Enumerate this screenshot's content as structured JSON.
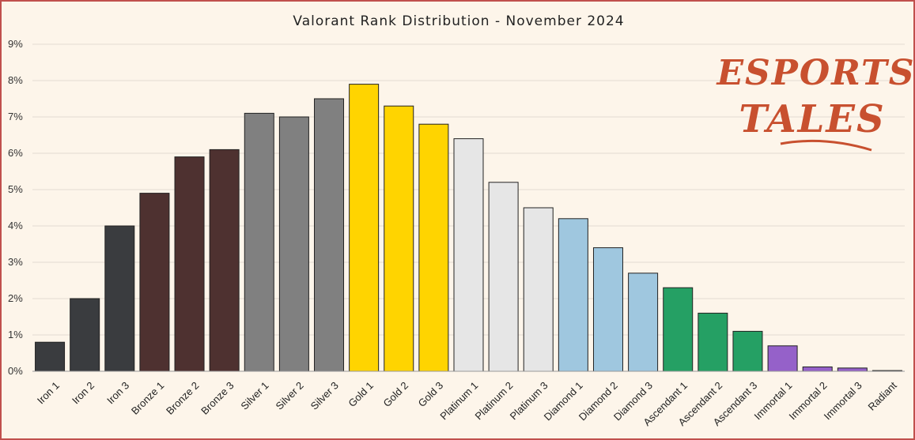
{
  "chart_data": {
    "type": "bar",
    "title": "Valorant Rank Distribution  - November  2024",
    "categories": [
      "Iron 1",
      "Iron 2",
      "Iron 3",
      "Bronze 1",
      "Bronze 2",
      "Bronze 3",
      "Silver 1",
      "Silver 2",
      "Silver 3",
      "Gold 1",
      "Gold 2",
      "Gold 3",
      "Platinum 1",
      "Platinum 2",
      "Platinum 3",
      "Diamond 1",
      "Diamond 2",
      "Diamond 3",
      "Ascendant 1",
      "Ascendant 2",
      "Ascendant 3",
      "Immortal 1",
      "Immortal 2",
      "Immortal 3",
      "Radiant"
    ],
    "values": [
      0.8,
      2.0,
      4.0,
      4.9,
      5.9,
      6.1,
      7.1,
      7.0,
      7.5,
      7.9,
      7.3,
      6.8,
      6.4,
      5.2,
      4.5,
      4.2,
      3.4,
      2.7,
      2.3,
      1.6,
      1.1,
      0.7,
      0.12,
      0.09,
      0.02
    ],
    "colors": [
      "#3a3c3f",
      "#3a3c3f",
      "#3a3c3f",
      "#4e3130",
      "#4e3130",
      "#4e3130",
      "#808080",
      "#808080",
      "#808080",
      "#ffd400",
      "#ffd400",
      "#ffd400",
      "#e6e6e6",
      "#e6e6e6",
      "#e6e6e6",
      "#9fc7df",
      "#9fc7df",
      "#9fc7df",
      "#25a064",
      "#25a064",
      "#25a064",
      "#9561c9",
      "#9561c9",
      "#9561c9",
      "#f2f2c8"
    ],
    "ylim": [
      0,
      9
    ],
    "yticks": [
      "0%",
      "1%",
      "2%",
      "3%",
      "4%",
      "5%",
      "6%",
      "7%",
      "8%",
      "9%"
    ],
    "xlabel": "",
    "ylabel": "",
    "grid": true,
    "legend": "none"
  },
  "logo": {
    "line1": "ESPORTS",
    "line2": "TALES",
    "color": "#c8502f"
  }
}
